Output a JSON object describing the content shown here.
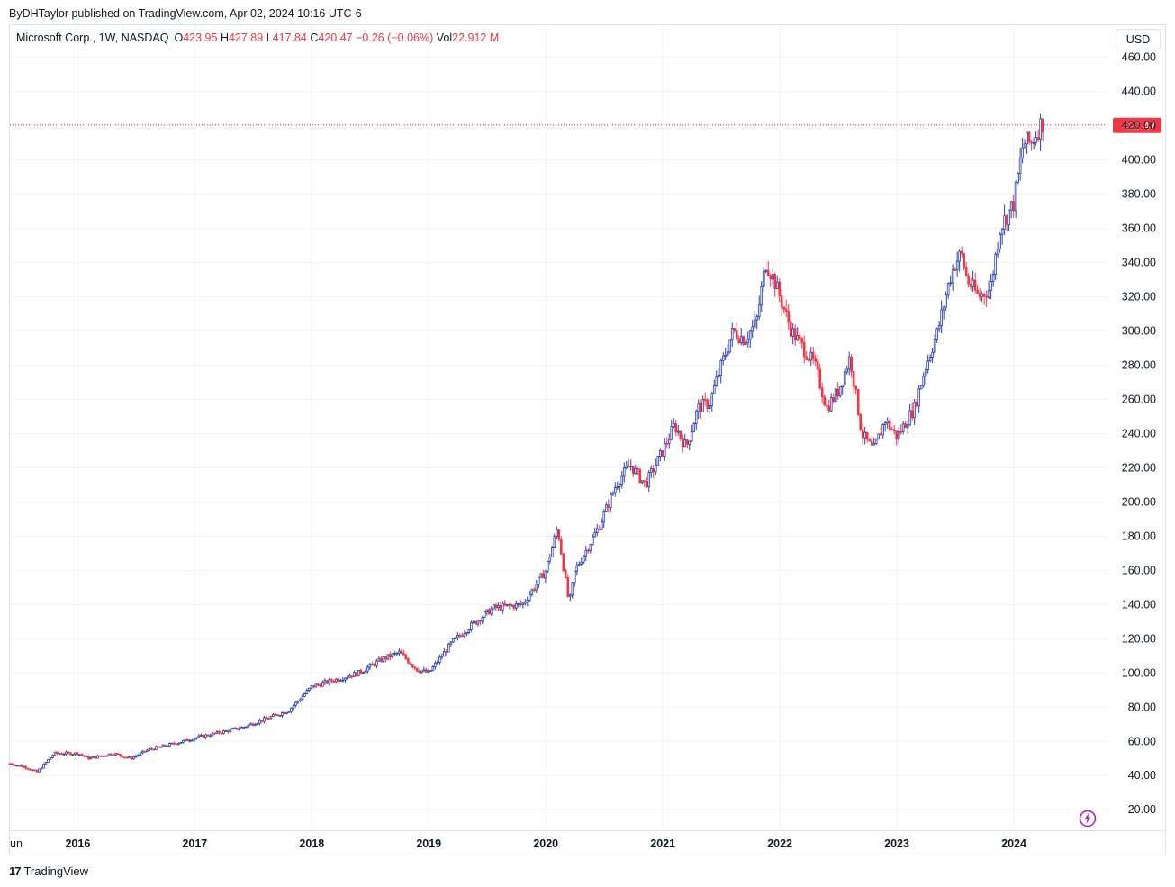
{
  "header": {
    "publisher_line": "ByDHTaylor published on TradingView.com, Apr 02, 2024 10:16 UTC-6"
  },
  "legend": {
    "symbol": "Microsoft Corp., 1W, NASDAQ",
    "open_label": "O",
    "open": "423.95",
    "high_label": "H",
    "high": "427.89",
    "low_label": "L",
    "low": "417.84",
    "close_label": "C",
    "close": "420.47",
    "change": "−0.26 (−0.06%)",
    "vol_label": "Vol",
    "vol": "22.912 M"
  },
  "currency_button": "USD",
  "footer": {
    "brand": "TradingView",
    "logo_icon": "tradingview-logo-icon"
  },
  "colors": {
    "up": "#2a3fa5",
    "down": "#f23645",
    "grid": "#f0f3fa",
    "axis_text": "#131722"
  },
  "chart_data": {
    "type": "candlestick",
    "title": "Microsoft Corp., 1W, NASDAQ",
    "ylim": [
      8,
      463
    ],
    "xlim": [
      2015.42,
      2024.8
    ],
    "y_ticks": [
      20,
      40,
      60,
      80,
      100,
      120,
      140,
      160,
      180,
      200,
      220,
      240,
      260,
      280,
      300,
      320,
      340,
      360,
      380,
      400,
      420,
      440,
      460
    ],
    "y_tick_labels": [
      "20.00",
      "40.00",
      "60.00",
      "80.00",
      "100.00",
      "120.00",
      "140.00",
      "160.00",
      "180.00",
      "200.00",
      "220.00",
      "240.00",
      "260.00",
      "280.00",
      "300.00",
      "320.00",
      "340.00",
      "360.00",
      "380.00",
      "400.00",
      "420.00",
      "440.00",
      "460.00"
    ],
    "x_ticks": [
      2016,
      2017,
      2018,
      2019,
      2020,
      2021,
      2022,
      2023,
      2024
    ],
    "x_tick_labels": [
      "2016",
      "2017",
      "2018",
      "2019",
      "2020",
      "2021",
      "2022",
      "2023",
      "2024"
    ],
    "x_edge_label": "un",
    "last_price": 420.47,
    "last_price_label": "420.47",
    "price_anchors": [
      [
        2015.42,
        47
      ],
      [
        2015.55,
        45
      ],
      [
        2015.65,
        42
      ],
      [
        2015.8,
        53
      ],
      [
        2016.0,
        53
      ],
      [
        2016.1,
        50
      ],
      [
        2016.3,
        53
      ],
      [
        2016.45,
        50
      ],
      [
        2016.6,
        55
      ],
      [
        2016.9,
        60
      ],
      [
        2017.0,
        62
      ],
      [
        2017.4,
        68
      ],
      [
        2017.8,
        78
      ],
      [
        2018.0,
        92
      ],
      [
        2018.15,
        95
      ],
      [
        2018.4,
        100
      ],
      [
        2018.6,
        108
      ],
      [
        2018.75,
        112
      ],
      [
        2018.9,
        102
      ],
      [
        2019.0,
        100
      ],
      [
        2019.2,
        118
      ],
      [
        2019.4,
        130
      ],
      [
        2019.55,
        138
      ],
      [
        2019.8,
        140
      ],
      [
        2020.0,
        160
      ],
      [
        2020.1,
        185
      ],
      [
        2020.2,
        140
      ],
      [
        2020.25,
        160
      ],
      [
        2020.45,
        185
      ],
      [
        2020.6,
        210
      ],
      [
        2020.72,
        222
      ],
      [
        2020.85,
        210
      ],
      [
        2021.0,
        230
      ],
      [
        2021.1,
        245
      ],
      [
        2021.2,
        232
      ],
      [
        2021.3,
        255
      ],
      [
        2021.4,
        258
      ],
      [
        2021.5,
        280
      ],
      [
        2021.6,
        300
      ],
      [
        2021.7,
        295
      ],
      [
        2021.8,
        305
      ],
      [
        2021.88,
        340
      ],
      [
        2021.95,
        330
      ],
      [
        2022.1,
        300
      ],
      [
        2022.2,
        290
      ],
      [
        2022.3,
        280
      ],
      [
        2022.4,
        255
      ],
      [
        2022.5,
        265
      ],
      [
        2022.6,
        285
      ],
      [
        2022.7,
        240
      ],
      [
        2022.8,
        230
      ],
      [
        2022.9,
        248
      ],
      [
        2023.0,
        238
      ],
      [
        2023.15,
        255
      ],
      [
        2023.25,
        280
      ],
      [
        2023.35,
        300
      ],
      [
        2023.45,
        330
      ],
      [
        2023.5,
        340
      ],
      [
        2023.55,
        345
      ],
      [
        2023.6,
        330
      ],
      [
        2023.7,
        320
      ],
      [
        2023.8,
        325
      ],
      [
        2023.88,
        360
      ],
      [
        2024.0,
        375
      ],
      [
        2024.08,
        410
      ],
      [
        2024.15,
        410
      ],
      [
        2024.22,
        420
      ],
      [
        2024.25,
        422
      ]
    ]
  }
}
